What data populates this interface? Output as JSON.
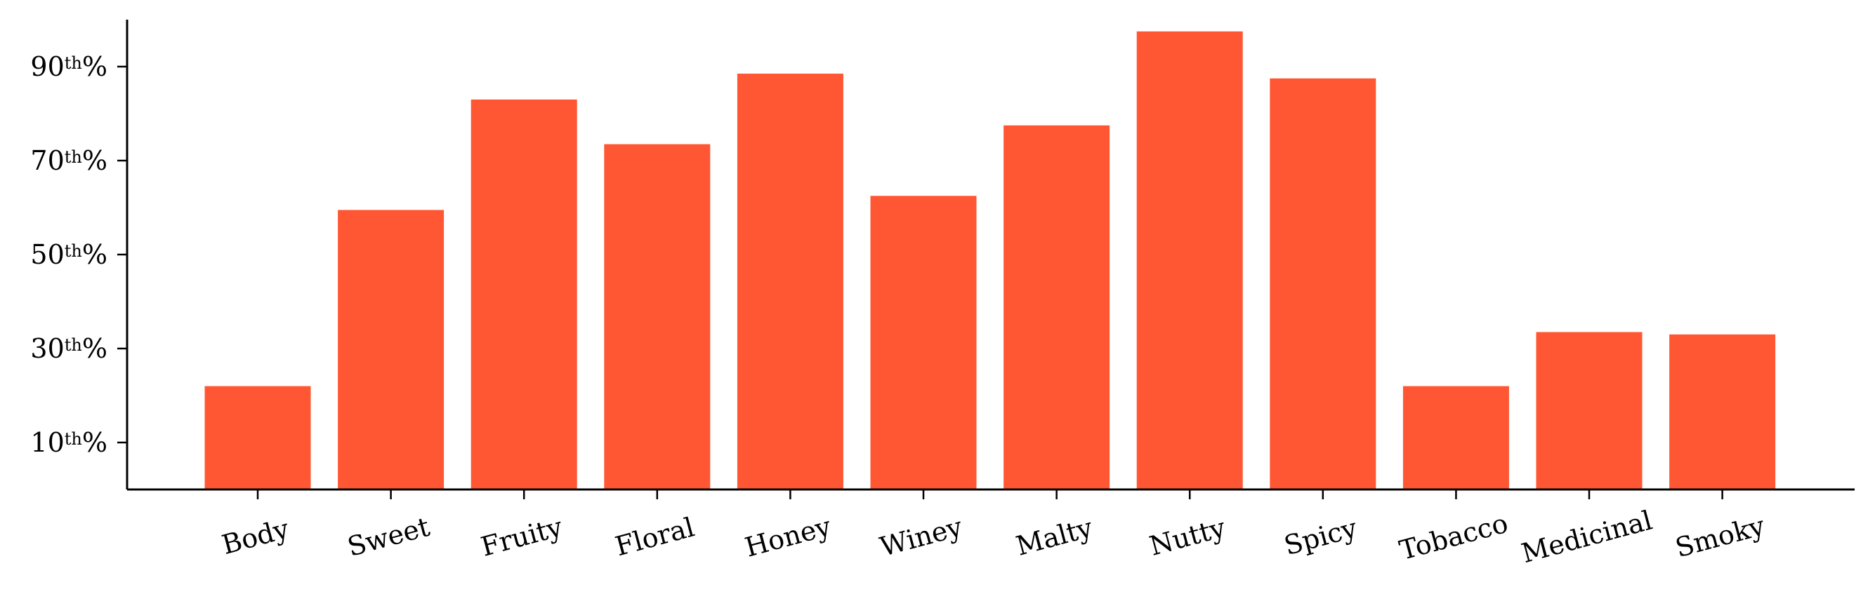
{
  "chart_data": {
    "type": "bar",
    "title": "",
    "xlabel": "",
    "ylabel": "",
    "categories": [
      "Body",
      "Sweet",
      "Fruity",
      "Floral",
      "Honey",
      "Winey",
      "Malty",
      "Nutty",
      "Spicy",
      "Tobacco",
      "Medicinal",
      "Smoky"
    ],
    "values": [
      22,
      59.5,
      83,
      73.5,
      88.5,
      62.5,
      77.5,
      97.5,
      87.5,
      22,
      33.5,
      33
    ],
    "ylim": [
      0,
      100
    ],
    "yticks": [
      {
        "value": 10,
        "num": "10",
        "sup": "th",
        "suffix": "%"
      },
      {
        "value": 30,
        "num": "30",
        "sup": "th",
        "suffix": "%"
      },
      {
        "value": 50,
        "num": "50",
        "sup": "th",
        "suffix": "%"
      },
      {
        "value": 70,
        "num": "70",
        "sup": "th",
        "suffix": "%"
      },
      {
        "value": 90,
        "num": "90",
        "sup": "th",
        "suffix": "%"
      }
    ],
    "bar_color": "#FF5733",
    "grid": false,
    "xtick_rotation_deg": -15
  }
}
